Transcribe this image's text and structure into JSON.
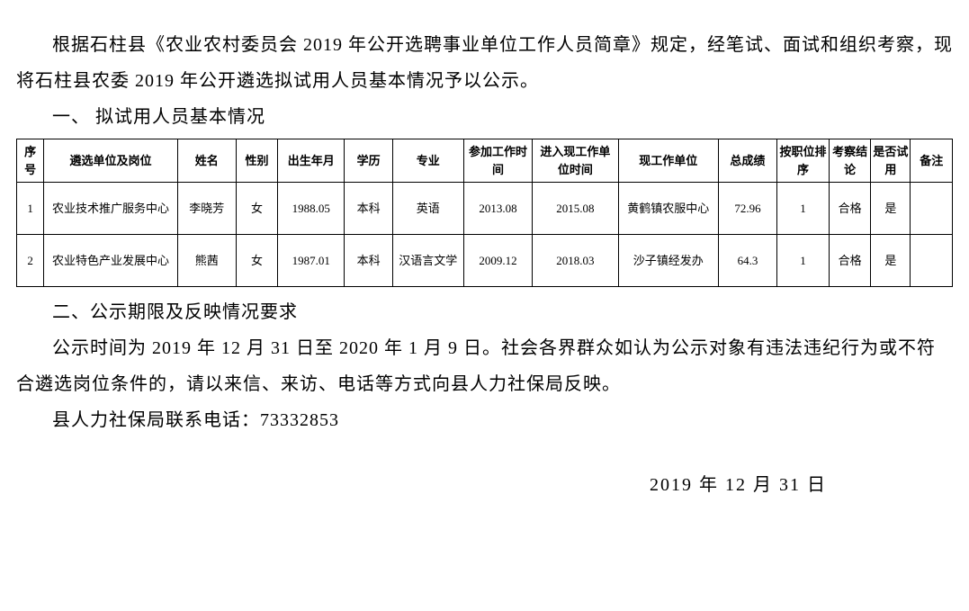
{
  "paragraphs": {
    "intro": "根据石柱县《农业农村委员会 2019 年公开选聘事业单位工作人员简章》规定，经笔试、面试和组织考察，现将石柱县农委 2019 年公开遴选拟试用人员基本情况予以公示。",
    "section1_title": "一、 拟试用人员基本情况",
    "section2_title": "二、公示期限及反映情况要求",
    "period": "公示时间为 2019 年 12 月 31 日至 2020 年 1 月 9 日。社会各界群众如认为公示对象有违法违纪行为或不符合遴选岗位条件的，请以来信、来访、电话等方式向县人力社保局反映。",
    "contact": "县人力社保局联系电话：73332853",
    "date": "2019 年 12 月 31 日"
  },
  "table": {
    "headers": {
      "seq": "序号",
      "unit": "遴选单位及岗位",
      "name": "姓名",
      "gender": "性别",
      "birth": "出生年月",
      "edu": "学历",
      "major": "专业",
      "worktime": "参加工作时间",
      "curtime": "进入现工作单位时间",
      "curunit": "现工作单位",
      "score": "总成绩",
      "rank": "按职位排序",
      "eval": "考察结论",
      "trial": "是否试用",
      "note": "备注"
    },
    "rows": [
      {
        "seq": "1",
        "unit": "农业技术推广服务中心",
        "name": "李晓芳",
        "gender": "女",
        "birth": "1988.05",
        "edu": "本科",
        "major": "英语",
        "worktime": "2013.08",
        "curtime": "2015.08",
        "curunit": "黄鹤镇农服中心",
        "score": "72.96",
        "rank": "1",
        "eval": "合格",
        "trial": "是",
        "note": ""
      },
      {
        "seq": "2",
        "unit": "农业特色产业发展中心",
        "name": "熊茜",
        "gender": "女",
        "birth": "1987.01",
        "edu": "本科",
        "major": "汉语言文学",
        "worktime": "2009.12",
        "curtime": "2018.03",
        "curunit": "沙子镇经发办",
        "score": "64.3",
        "rank": "1",
        "eval": "合格",
        "trial": "是",
        "note": ""
      }
    ]
  },
  "styling": {
    "body_font": "SimSun",
    "body_fontsize": 20,
    "table_fontsize": 13,
    "text_color": "#000000",
    "background_color": "#ffffff",
    "border_color": "#000000",
    "line_height": 2.0,
    "table_row_height": 58,
    "table_header_height": 48
  }
}
